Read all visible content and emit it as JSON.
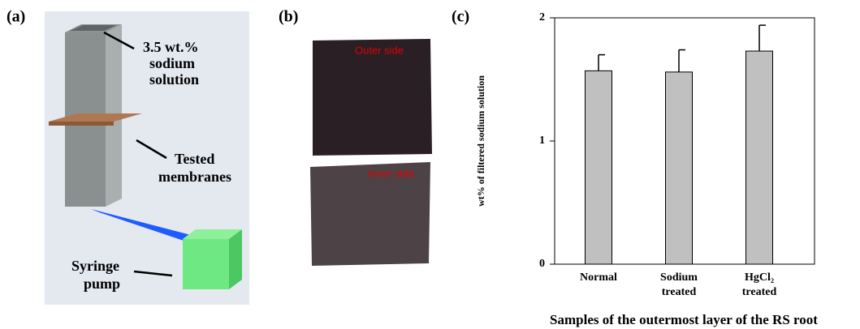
{
  "panels": {
    "a": "(a)",
    "b": "(b)",
    "c": "(c)"
  },
  "diagram": {
    "solution_label": [
      "3.5 wt.%",
      "sodium",
      "solution"
    ],
    "membrane_label": [
      "Tested",
      "membranes"
    ],
    "pump_label": [
      "Syringe",
      "pump"
    ]
  },
  "photos": {
    "outer": "Outer side",
    "inner": "Inner side"
  },
  "chart_data": {
    "type": "bar",
    "xlabel": "Samples of the outermost layer of the RS root",
    "ylabel": "wt% of filtered sodium solution",
    "categories": [
      "Normal",
      "Sodium treated",
      "HgCl₂ treated"
    ],
    "values": [
      1.57,
      1.56,
      1.73
    ],
    "errors": [
      0.13,
      0.18,
      0.21
    ],
    "color": "#c0c0c0",
    "ylim": [
      0,
      2
    ],
    "yticks": [
      0,
      1,
      2
    ]
  }
}
